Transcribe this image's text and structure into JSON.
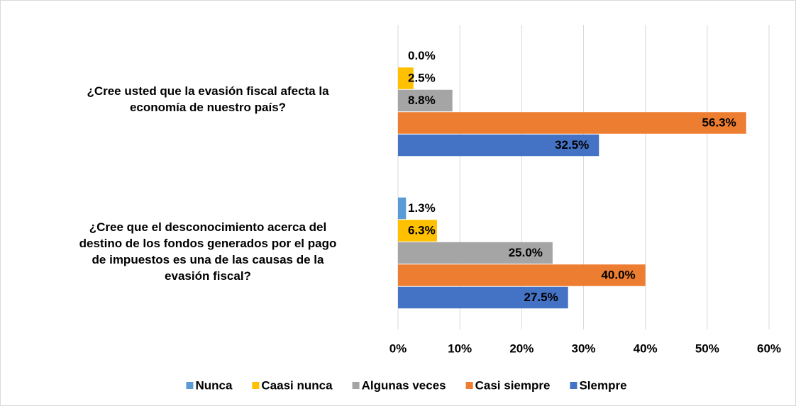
{
  "chart_data": {
    "type": "barh",
    "categories": [
      "¿Cree usted que la evasión fiscal afecta la economía de nuestro país?",
      "¿Cree que el desconocimiento acerca del destino de los fondos generados por el pago de impuestos es una de las causas de la evasión fiscal?"
    ],
    "series": [
      {
        "name": "Nunca",
        "color": "#5b9bd5",
        "values": [
          0.0,
          1.3
        ],
        "value_labels": [
          "0.0%",
          "1.3%"
        ]
      },
      {
        "name": "Caasi nunca",
        "color": "#ffc000",
        "values": [
          2.5,
          6.3
        ],
        "value_labels": [
          "2.5%",
          "6.3%"
        ]
      },
      {
        "name": "Algunas veces",
        "color": "#a5a5a5",
        "values": [
          8.8,
          25.0
        ],
        "value_labels": [
          "8.8%",
          "25.0%"
        ]
      },
      {
        "name": "Casi siempre",
        "color": "#ed7d31",
        "values": [
          56.3,
          40.0
        ],
        "value_labels": [
          "56.3%",
          "40.0%"
        ]
      },
      {
        "name": "SIempre",
        "color": "#4472c4",
        "values": [
          32.5,
          27.5
        ],
        "value_labels": [
          "32.5%",
          "27.5%"
        ]
      }
    ],
    "xlim": [
      0,
      60
    ],
    "xticks": [
      {
        "value": 0,
        "label": "0%"
      },
      {
        "value": 10,
        "label": "10%"
      },
      {
        "value": 20,
        "label": "20%"
      },
      {
        "value": 30,
        "label": "30%"
      },
      {
        "value": 40,
        "label": "40%"
      },
      {
        "value": 50,
        "label": "50%"
      },
      {
        "value": 60,
        "label": "60%"
      }
    ],
    "grid": true,
    "legend": "bottom"
  }
}
